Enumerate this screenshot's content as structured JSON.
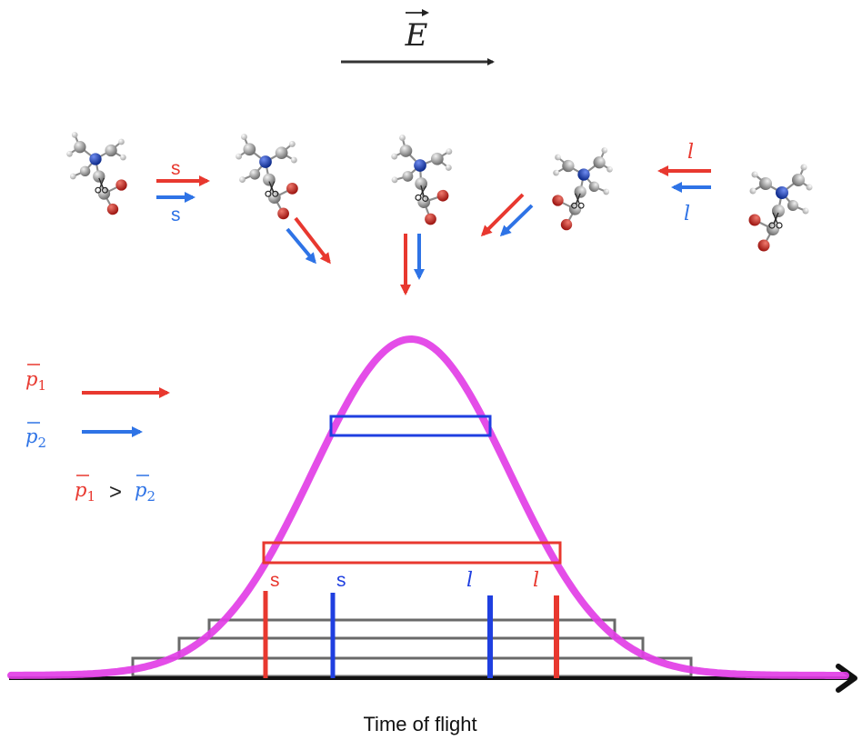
{
  "field": {
    "symbol": "E"
  },
  "labels": {
    "s": "s",
    "l": "l"
  },
  "legend": {
    "p1": "p",
    "p1_sub": "1",
    "p2": "p",
    "p2_sub": "2",
    "relation": ">"
  },
  "axis": {
    "xlabel": "Time of flight"
  },
  "molecule_atoms": [
    "carbon",
    "nitrogen",
    "oxygen",
    "hydrogen"
  ],
  "icons": [
    "arrow-right-icon",
    "arrow-left-icon",
    "arrow-down-icon",
    "scissors-icon"
  ],
  "colors": {
    "red": "#e8382f",
    "blue": "#2e73e6",
    "magenta": "#e23ee6",
    "black": "#222222",
    "nitrogen": "#1a3fb0",
    "oxygen": "#c8201b",
    "carbon": "#8a8a8a",
    "hydrogen": "#cfcfcf"
  }
}
